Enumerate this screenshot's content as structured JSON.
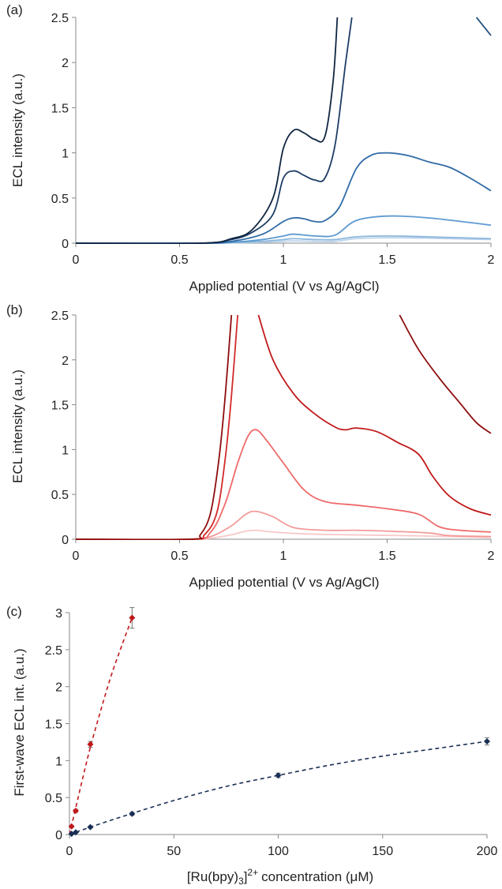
{
  "chart_data": [
    {
      "type": "line",
      "panel_label": "(a)",
      "xlabel": "Applied potential (V vs Ag/AgCl)",
      "ylabel": "ECL intensity (a.u.)",
      "xlim": [
        0,
        2
      ],
      "ylim": [
        0,
        2.5
      ],
      "x_ticks": [
        "0",
        "0.5",
        "1",
        "1.5",
        "2"
      ],
      "y_ticks": [
        "0",
        "0.5",
        "1",
        "1.5",
        "2",
        "2.5"
      ],
      "series": [
        {
          "color": "#bcd3ea",
          "points": [
            [
              0,
              0
            ],
            [
              0.6,
              0
            ],
            [
              0.75,
              0.003
            ],
            [
              0.9,
              0.01
            ],
            [
              1.0,
              0.02
            ],
            [
              1.05,
              0.025
            ],
            [
              1.15,
              0.02
            ],
            [
              1.25,
              0.02
            ],
            [
              1.35,
              0.05
            ],
            [
              1.5,
              0.06
            ],
            [
              1.7,
              0.055
            ],
            [
              2.0,
              0.04
            ]
          ]
        },
        {
          "color": "#8db7dc",
          "points": [
            [
              0,
              0
            ],
            [
              0.6,
              0
            ],
            [
              0.75,
              0.005
            ],
            [
              0.9,
              0.02
            ],
            [
              1.0,
              0.04
            ],
            [
              1.05,
              0.05
            ],
            [
              1.15,
              0.04
            ],
            [
              1.25,
              0.04
            ],
            [
              1.35,
              0.07
            ],
            [
              1.5,
              0.08
            ],
            [
              1.7,
              0.07
            ],
            [
              2.0,
              0.05
            ]
          ]
        },
        {
          "color": "#5d9ad0",
          "points": [
            [
              0,
              0
            ],
            [
              0.6,
              0
            ],
            [
              0.75,
              0.01
            ],
            [
              0.9,
              0.04
            ],
            [
              1.0,
              0.08
            ],
            [
              1.05,
              0.1
            ],
            [
              1.15,
              0.08
            ],
            [
              1.25,
              0.09
            ],
            [
              1.35,
              0.25
            ],
            [
              1.5,
              0.3
            ],
            [
              1.7,
              0.28
            ],
            [
              2.0,
              0.2
            ]
          ]
        },
        {
          "color": "#2f6aa6",
          "points": [
            [
              0,
              0
            ],
            [
              0.6,
              0
            ],
            [
              0.75,
              0.02
            ],
            [
              0.9,
              0.1
            ],
            [
              1.0,
              0.24
            ],
            [
              1.05,
              0.28
            ],
            [
              1.1,
              0.27
            ],
            [
              1.15,
              0.24
            ],
            [
              1.2,
              0.25
            ],
            [
              1.27,
              0.4
            ],
            [
              1.35,
              0.82
            ],
            [
              1.42,
              0.97
            ],
            [
              1.5,
              1.0
            ],
            [
              1.6,
              0.97
            ],
            [
              1.7,
              0.9
            ],
            [
              1.8,
              0.84
            ],
            [
              1.9,
              0.72
            ],
            [
              2.0,
              0.58
            ]
          ]
        },
        {
          "color": "#1e3d66",
          "points": [
            [
              0,
              0
            ],
            [
              0.6,
              0
            ],
            [
              0.75,
              0.04
            ],
            [
              0.85,
              0.12
            ],
            [
              0.95,
              0.32
            ],
            [
              1.0,
              0.72
            ],
            [
              1.05,
              0.8
            ],
            [
              1.1,
              0.75
            ],
            [
              1.15,
              0.7
            ],
            [
              1.2,
              0.72
            ],
            [
              1.25,
              1.1
            ],
            [
              1.3,
              2.0
            ],
            [
              1.33,
              2.5
            ]
          ]
        },
        {
          "color": "#0f2540",
          "points": [
            [
              0,
              0
            ],
            [
              0.6,
              0
            ],
            [
              0.75,
              0.05
            ],
            [
              0.85,
              0.15
            ],
            [
              0.95,
              0.5
            ],
            [
              1.0,
              1.05
            ],
            [
              1.05,
              1.25
            ],
            [
              1.1,
              1.22
            ],
            [
              1.15,
              1.15
            ],
            [
              1.2,
              1.18
            ],
            [
              1.24,
              1.8
            ],
            [
              1.26,
              2.5
            ]
          ]
        },
        {
          "color": "#24527f",
          "points": [
            [
              1.93,
              2.5
            ],
            [
              2.0,
              2.3
            ]
          ]
        }
      ]
    },
    {
      "type": "line",
      "panel_label": "(b)",
      "xlabel": "Applied potential (V vs Ag/AgCl)",
      "ylabel": "ECL intensity (a.u.)",
      "xlim": [
        0,
        2
      ],
      "ylim": [
        0,
        2.5
      ],
      "x_ticks": [
        "0",
        "0.5",
        "1",
        "1.5",
        "2"
      ],
      "y_ticks": [
        "0",
        "0.5",
        "1",
        "1.5",
        "2",
        "2.5"
      ],
      "series": [
        {
          "color": "#f8c8c8",
          "points": [
            [
              0,
              0
            ],
            [
              0.55,
              0
            ],
            [
              0.65,
              0.01
            ],
            [
              0.75,
              0.05
            ],
            [
              0.82,
              0.09
            ],
            [
              0.87,
              0.1
            ],
            [
              0.95,
              0.08
            ],
            [
              1.1,
              0.06
            ],
            [
              1.3,
              0.05
            ],
            [
              1.6,
              0.04
            ],
            [
              2.0,
              0.02
            ]
          ]
        },
        {
          "color": "#f49a9a",
          "points": [
            [
              0,
              0
            ],
            [
              0.55,
              0
            ],
            [
              0.65,
              0.03
            ],
            [
              0.75,
              0.15
            ],
            [
              0.82,
              0.28
            ],
            [
              0.87,
              0.31
            ],
            [
              0.95,
              0.25
            ],
            [
              1.05,
              0.13
            ],
            [
              1.2,
              0.1
            ],
            [
              1.35,
              0.1
            ],
            [
              1.5,
              0.09
            ],
            [
              1.7,
              0.07
            ],
            [
              1.8,
              0.04
            ],
            [
              2.0,
              0.03
            ]
          ]
        },
        {
          "color": "#ee6a6a",
          "points": [
            [
              0,
              0
            ],
            [
              0.55,
              0
            ],
            [
              0.65,
              0.08
            ],
            [
              0.72,
              0.4
            ],
            [
              0.78,
              0.85
            ],
            [
              0.83,
              1.15
            ],
            [
              0.87,
              1.22
            ],
            [
              0.92,
              1.1
            ],
            [
              1.0,
              0.85
            ],
            [
              1.1,
              0.55
            ],
            [
              1.2,
              0.42
            ],
            [
              1.35,
              0.38
            ],
            [
              1.5,
              0.34
            ],
            [
              1.65,
              0.28
            ],
            [
              1.75,
              0.14
            ],
            [
              1.85,
              0.1
            ],
            [
              2.0,
              0.08
            ]
          ]
        },
        {
          "color": "#c01a1a",
          "points": [
            [
              0.88,
              2.5
            ],
            [
              0.95,
              2.0
            ],
            [
              1.05,
              1.62
            ],
            [
              1.15,
              1.4
            ],
            [
              1.25,
              1.25
            ],
            [
              1.3,
              1.22
            ],
            [
              1.35,
              1.24
            ],
            [
              1.45,
              1.2
            ],
            [
              1.55,
              1.08
            ],
            [
              1.65,
              0.95
            ],
            [
              1.72,
              0.7
            ],
            [
              1.8,
              0.48
            ],
            [
              1.9,
              0.34
            ],
            [
              2.0,
              0.27
            ]
          ]
        },
        {
          "color": "#d22a2a",
          "points": [
            [
              0,
              0
            ],
            [
              0.55,
              0
            ],
            [
              0.62,
              0.05
            ],
            [
              0.68,
              0.3
            ],
            [
              0.72,
              0.9
            ],
            [
              0.75,
              1.6
            ],
            [
              0.78,
              2.5
            ]
          ]
        },
        {
          "color": "#8e0d0d",
          "points": [
            [
              0,
              0
            ],
            [
              0.55,
              0
            ],
            [
              0.6,
              0.05
            ],
            [
              0.65,
              0.3
            ],
            [
              0.69,
              0.9
            ],
            [
              0.72,
              1.6
            ],
            [
              0.75,
              2.5
            ]
          ]
        },
        {
          "color": "#8e0d0d",
          "points": [
            [
              1.56,
              2.5
            ],
            [
              1.65,
              2.12
            ],
            [
              1.75,
              1.8
            ],
            [
              1.85,
              1.52
            ],
            [
              1.93,
              1.3
            ],
            [
              2.0,
              1.18
            ]
          ]
        }
      ]
    },
    {
      "type": "scatter",
      "panel_label": "(c)",
      "xlabel": "concentration (μM)",
      "xlabel_prefix": "[Ru(bpy)",
      "xlabel_sub": "3",
      "xlabel_close": "]",
      "xlabel_sup": "2+",
      "ylabel": "First-wave ECL int. (a.u.)",
      "xlim": [
        0,
        200
      ],
      "ylim": [
        0,
        3
      ],
      "x_ticks": [
        "0",
        "50",
        "100",
        "150",
        "200"
      ],
      "y_ticks": [
        "0",
        "0.5",
        "1",
        "1.5",
        "2",
        "2.5",
        "3"
      ],
      "series": [
        {
          "color": "#c0181a",
          "marker_color": "#c0181a",
          "x": [
            1,
            3,
            10,
            30
          ],
          "y": [
            0.11,
            0.32,
            1.22,
            2.93
          ],
          "err": [
            0.01,
            0.02,
            0.04,
            0.14
          ],
          "fit": [
            [
              0,
              0
            ],
            [
              3,
              0.36
            ],
            [
              6,
              0.72
            ],
            [
              10,
              1.18
            ],
            [
              15,
              1.68
            ],
            [
              20,
              2.15
            ],
            [
              25,
              2.55
            ],
            [
              30,
              2.93
            ]
          ]
        },
        {
          "color": "#1a2f55",
          "marker_color": "#1a2f55",
          "x": [
            1,
            3,
            10,
            30,
            100,
            200
          ],
          "y": [
            0.01,
            0.03,
            0.1,
            0.28,
            0.8,
            1.26
          ],
          "err": [
            0.005,
            0.005,
            0.01,
            0.02,
            0.03,
            0.05
          ],
          "fit": [
            [
              0,
              0
            ],
            [
              10,
              0.1
            ],
            [
              25,
              0.24
            ],
            [
              50,
              0.46
            ],
            [
              75,
              0.65
            ],
            [
              100,
              0.8
            ],
            [
              125,
              0.94
            ],
            [
              150,
              1.06
            ],
            [
              175,
              1.16
            ],
            [
              200,
              1.26
            ]
          ]
        }
      ]
    }
  ]
}
